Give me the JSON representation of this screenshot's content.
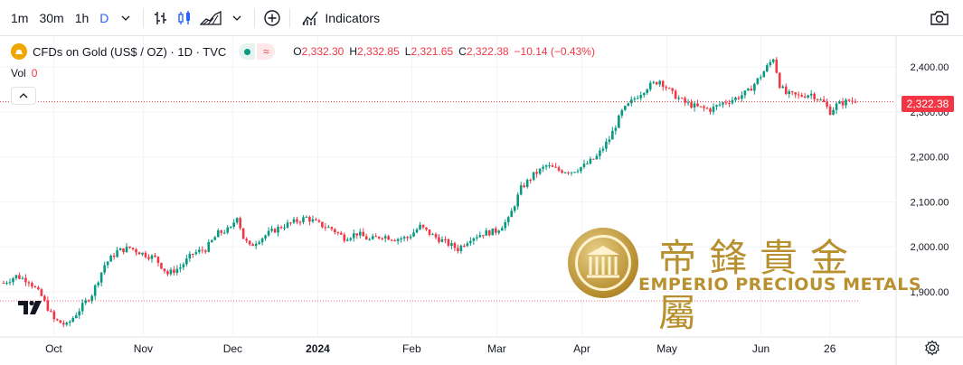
{
  "toolbar": {
    "intervals": [
      "1m",
      "30m",
      "1h",
      "D"
    ],
    "active_interval": "D",
    "indicators_label": "Indicators"
  },
  "legend": {
    "symbol_title": "CFDs on Gold (US$ / OZ) · 1D · TVC",
    "ohlc": [
      {
        "label": "O",
        "value": "2,332.30"
      },
      {
        "label": "H",
        "value": "2,332.85"
      },
      {
        "label": "L",
        "value": "2,321.65"
      },
      {
        "label": "C",
        "value": "2,322.38"
      },
      {
        "label": "",
        "value": "−10.14 (−0.43%)"
      }
    ],
    "vol_label": "Vol",
    "vol_value": "0"
  },
  "watermark": {
    "chinese": "帝鋒貴金屬",
    "english": "EMPERIO PRECIOUS METALS"
  },
  "colors": {
    "up": "#089981",
    "down": "#f23645",
    "grid": "#f0f3fa",
    "axis_text": "#131722",
    "last_price_line": "#f23645",
    "ref_line": "#f23645",
    "watermark_gold": "#b8902f"
  },
  "chart_data": {
    "type": "candlestick",
    "title": "CFDs on Gold (US$ / OZ)",
    "interval": "1D",
    "source": "TVC",
    "last_price": 2322.38,
    "last_price_label": "2,322.38",
    "reference_price": 1880,
    "ylim": [
      1800,
      2460
    ],
    "y_ticks": [
      {
        "value": 1900,
        "label": "1,900.00"
      },
      {
        "value": 2000,
        "label": "2,000.00"
      },
      {
        "value": 2100,
        "label": "2,100.00"
      },
      {
        "value": 2200,
        "label": "2,200.00"
      },
      {
        "value": 2300,
        "label": "2,300.00"
      },
      {
        "value": 2400,
        "label": "2,400.00"
      }
    ],
    "x_ticks": [
      {
        "t": 0.06,
        "label": "Oct",
        "bold": false
      },
      {
        "t": 0.16,
        "label": "Nov",
        "bold": false
      },
      {
        "t": 0.26,
        "label": "Dec",
        "bold": false
      },
      {
        "t": 0.355,
        "label": "2024",
        "bold": true
      },
      {
        "t": 0.46,
        "label": "Feb",
        "bold": false
      },
      {
        "t": 0.555,
        "label": "Mar",
        "bold": false
      },
      {
        "t": 0.65,
        "label": "Apr",
        "bold": false
      },
      {
        "t": 0.745,
        "label": "May",
        "bold": false
      },
      {
        "t": 0.85,
        "label": "Jun",
        "bold": false
      },
      {
        "t": 0.927,
        "label": "26",
        "bold": false
      }
    ],
    "trend_points": [
      [
        0,
        1920
      ],
      [
        4,
        1935
      ],
      [
        8,
        1925
      ],
      [
        12,
        1890
      ],
      [
        16,
        1838
      ],
      [
        20,
        1825
      ],
      [
        24,
        1860
      ],
      [
        28,
        1895
      ],
      [
        32,
        1960
      ],
      [
        36,
        1990
      ],
      [
        40,
        1998
      ],
      [
        44,
        1985
      ],
      [
        48,
        1975
      ],
      [
        52,
        1940
      ],
      [
        56,
        1955
      ],
      [
        60,
        1985
      ],
      [
        64,
        1995
      ],
      [
        68,
        2030
      ],
      [
        72,
        2040
      ],
      [
        74,
        2070
      ],
      [
        76,
        2020
      ],
      [
        78,
        2000
      ],
      [
        80,
        2012
      ],
      [
        84,
        2030
      ],
      [
        88,
        2045
      ],
      [
        92,
        2055
      ],
      [
        96,
        2065
      ],
      [
        100,
        2050
      ],
      [
        104,
        2040
      ],
      [
        108,
        2020
      ],
      [
        112,
        2030
      ],
      [
        116,
        2015
      ],
      [
        120,
        2025
      ],
      [
        124,
        2018
      ],
      [
        128,
        2020
      ],
      [
        132,
        2045
      ],
      [
        136,
        2025
      ],
      [
        140,
        2010
      ],
      [
        144,
        1995
      ],
      [
        148,
        2020
      ],
      [
        152,
        2030
      ],
      [
        156,
        2035
      ],
      [
        160,
        2060
      ],
      [
        164,
        2130
      ],
      [
        168,
        2160
      ],
      [
        172,
        2180
      ],
      [
        176,
        2170
      ],
      [
        180,
        2168
      ],
      [
        184,
        2180
      ],
      [
        188,
        2200
      ],
      [
        192,
        2240
      ],
      [
        196,
        2300
      ],
      [
        200,
        2330
      ],
      [
        204,
        2355
      ],
      [
        208,
        2370
      ],
      [
        212,
        2340
      ],
      [
        216,
        2320
      ],
      [
        220,
        2310
      ],
      [
        224,
        2305
      ],
      [
        228,
        2320
      ],
      [
        232,
        2330
      ],
      [
        236,
        2345
      ],
      [
        240,
        2380
      ],
      [
        242,
        2400
      ],
      [
        244,
        2420
      ],
      [
        246,
        2360
      ],
      [
        248,
        2340
      ],
      [
        252,
        2335
      ],
      [
        256,
        2340
      ],
      [
        260,
        2320
      ],
      [
        262,
        2300
      ],
      [
        264,
        2315
      ],
      [
        268,
        2325
      ],
      [
        270,
        2322
      ]
    ],
    "n_candles": 271
  }
}
